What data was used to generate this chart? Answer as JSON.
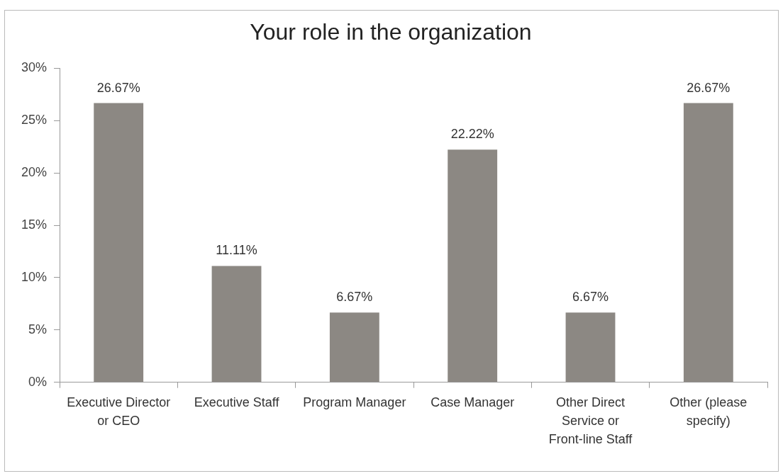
{
  "chart_data": {
    "type": "bar",
    "title": "Your role in the organization",
    "categories": [
      "Executive Director or CEO",
      "Executive Staff",
      "Program Manager",
      "Case Manager",
      "Other Direct Service or Front-line Staff",
      "Other (please specify)"
    ],
    "values": [
      26.67,
      11.11,
      6.67,
      22.22,
      6.67,
      26.67
    ],
    "value_labels": [
      "26.67%",
      "11.11%",
      "6.67%",
      "22.22%",
      "6.67%",
      "26.67%"
    ],
    "color": "#8c8883",
    "ylim": [
      0,
      30
    ],
    "yticks": [
      {
        "value": 0,
        "label": "0%"
      },
      {
        "value": 5,
        "label": "5%"
      },
      {
        "value": 10,
        "label": "10%"
      },
      {
        "value": 15,
        "label": "15%"
      },
      {
        "value": 20,
        "label": "20%"
      },
      {
        "value": 25,
        "label": "25%"
      },
      {
        "value": 30,
        "label": "30%"
      }
    ],
    "grid": false,
    "legend": false
  }
}
